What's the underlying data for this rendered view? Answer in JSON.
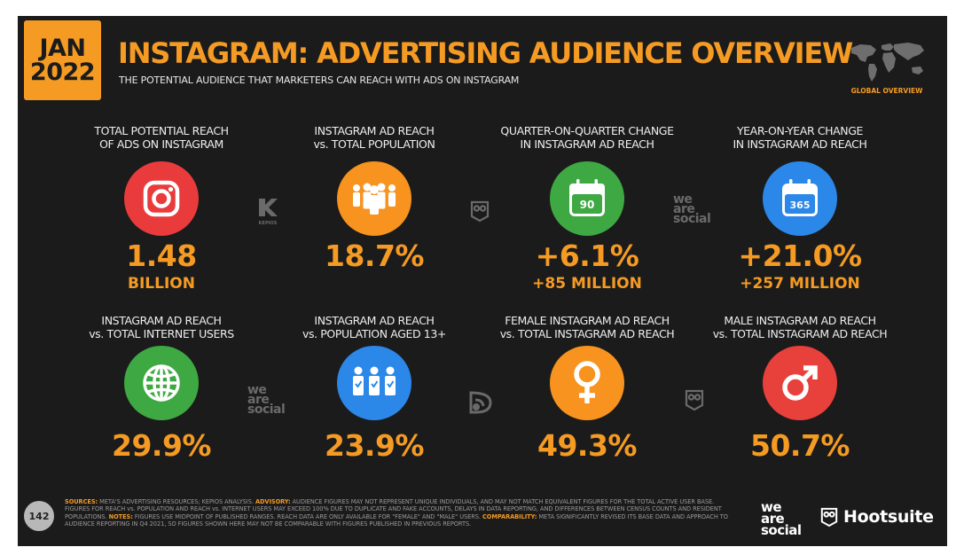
{
  "header": {
    "date_month": "JAN",
    "date_year": "2022",
    "title": "INSTAGRAM: ADVERTISING AUDIENCE OVERVIEW",
    "subtitle": "THE POTENTIAL AUDIENCE THAT MARKETERS CAN REACH WITH ADS ON INSTAGRAM",
    "map_label": "GLOBAL OVERVIEW"
  },
  "colors": {
    "accent": "#f59b23",
    "background": "#1b1b1b",
    "instagram_red": "#e93b3c",
    "orange": "#f7931e",
    "green": "#3ea843",
    "blue": "#2b87e8",
    "red": "#e8403a"
  },
  "stats": [
    {
      "label_1": "TOTAL POTENTIAL REACH",
      "label_2": "OF ADS ON INSTAGRAM",
      "value": "1.48",
      "sub": "BILLION",
      "icon": "instagram-icon"
    },
    {
      "label_1": "INSTAGRAM AD REACH",
      "label_2": "vs. TOTAL POPULATION",
      "value": "18.7%",
      "sub": "",
      "icon": "people-icon"
    },
    {
      "label_1": "QUARTER-ON-QUARTER CHANGE",
      "label_2": "IN INSTAGRAM AD REACH",
      "value": "+6.1%",
      "sub": "+85 MILLION",
      "icon": "calendar-icon",
      "icon_text": "90"
    },
    {
      "label_1": "YEAR-ON-YEAR CHANGE",
      "label_2": "IN INSTAGRAM AD REACH",
      "value": "+21.0%",
      "sub": "+257 MILLION",
      "icon": "calendar-icon",
      "icon_text": "365"
    },
    {
      "label_1": "INSTAGRAM AD REACH",
      "label_2": "vs. TOTAL INTERNET USERS",
      "value": "29.9%",
      "sub": "",
      "icon": "globe-icon"
    },
    {
      "label_1": "INSTAGRAM AD REACH",
      "label_2": "vs. POPULATION AGED 13+",
      "value": "23.9%",
      "sub": "",
      "icon": "people-check-icon"
    },
    {
      "label_1": "FEMALE INSTAGRAM AD REACH",
      "label_2": "vs. TOTAL INSTAGRAM AD REACH",
      "value": "49.3%",
      "sub": "",
      "icon": "female-icon"
    },
    {
      "label_1": "MALE INSTAGRAM AD REACH",
      "label_2": "vs. TOTAL INSTAGRAM AD REACH",
      "value": "50.7%",
      "sub": "",
      "icon": "male-icon"
    }
  ],
  "watermarks": {
    "kepios": "KEPIOS",
    "we": "we",
    "are": "are",
    "social": "social"
  },
  "footer": {
    "page_number": "142",
    "sources_label": "SOURCES:",
    "sources_text": " META'S ADVERTISING RESOURCES; KEPIOS ANALYSIS. ",
    "advisory_label": "ADVISORY:",
    "advisory_text": " AUDIENCE FIGURES MAY NOT REPRESENT UNIQUE INDIVIDUALS, AND MAY NOT MATCH EQUIVALENT FIGURES FOR THE TOTAL ACTIVE USER BASE. FIGURES FOR REACH vs. POPULATION AND REACH vs. INTERNET USERS MAY EXCEED 100% DUE TO DUPLICATE AND FAKE ACCOUNTS, DELAYS IN DATA REPORTING, AND DIFFERENCES BETWEEN CENSUS COUNTS AND RESIDENT POPULATIONS. ",
    "notes_label": "NOTES:",
    "notes_text": " FIGURES USE MIDPOINT OF PUBLISHED RANGES. REACH DATA ARE ONLY AVAILABLE FOR \"FEMALE\" AND \"MALE\" USERS. ",
    "comparability_label": "COMPARABILITY:",
    "comparability_text": " META SIGNIFICANTLY REVISED ITS BASE DATA AND APPROACH TO AUDIENCE REPORTING IN Q4 2021, SO FIGURES SHOWN HERE MAY NOT BE COMPARABLE WITH FIGURES PUBLISHED IN PREVIOUS REPORTS.",
    "brand_we": "we",
    "brand_are": "are",
    "brand_social": "social",
    "brand_hootsuite": "Hootsuite"
  }
}
